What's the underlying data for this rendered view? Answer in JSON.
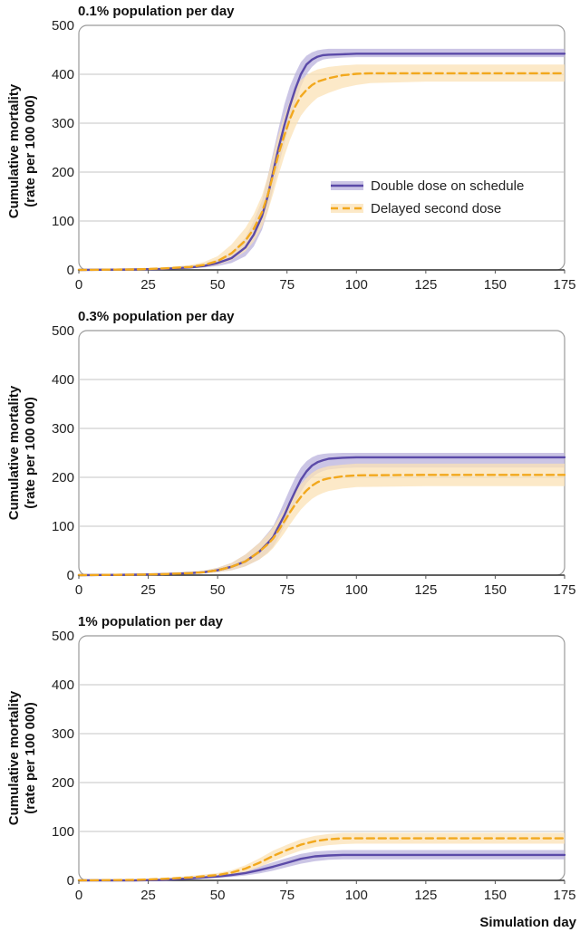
{
  "chart_data": [
    {
      "type": "line",
      "title": "0.1% population per day",
      "ylabel_line1": "Cumulative mortality",
      "ylabel_line2": "(rate per 100 000)",
      "xlim": [
        0,
        175
      ],
      "ylim": [
        0,
        500
      ],
      "xticks": [
        0,
        25,
        50,
        75,
        100,
        125,
        150,
        175
      ],
      "yticks": [
        0,
        100,
        200,
        300,
        400,
        500
      ],
      "legend": true,
      "series": [
        {
          "name": "Double dose on schedule",
          "style": "solid",
          "color": "#5b4aa8",
          "band_color": "#b9b1dc",
          "x": [
            0,
            20,
            30,
            40,
            45,
            50,
            55,
            60,
            63,
            66,
            68,
            70,
            72,
            74,
            76,
            78,
            80,
            82,
            84,
            86,
            88,
            90,
            95,
            100,
            125,
            150,
            175
          ],
          "y": [
            0,
            1,
            2,
            5,
            8,
            14,
            24,
            46,
            72,
            110,
            150,
            200,
            250,
            295,
            335,
            370,
            400,
            420,
            430,
            436,
            439,
            440,
            441,
            442,
            442,
            442,
            442
          ],
          "lower": [
            0,
            0,
            1,
            3,
            5,
            8,
            14,
            28,
            48,
            82,
            120,
            165,
            212,
            258,
            300,
            340,
            375,
            400,
            415,
            425,
            430,
            432,
            434,
            435,
            435,
            435,
            435
          ],
          "upper": [
            0,
            2,
            4,
            8,
            12,
            22,
            36,
            66,
            100,
            142,
            190,
            240,
            290,
            338,
            375,
            402,
            425,
            438,
            445,
            449,
            451,
            452,
            452,
            452,
            452,
            452,
            452
          ]
        },
        {
          "name": "Delayed second dose",
          "style": "dashed",
          "color": "#f2a81d",
          "band_color": "#fbe1b6",
          "x": [
            0,
            20,
            30,
            40,
            45,
            50,
            55,
            60,
            63,
            66,
            68,
            70,
            72,
            74,
            76,
            78,
            80,
            82,
            84,
            86,
            90,
            95,
            100,
            105,
            125,
            150,
            175
          ],
          "y": [
            0,
            1,
            3,
            6,
            10,
            18,
            34,
            60,
            84,
            118,
            152,
            195,
            238,
            275,
            308,
            335,
            355,
            368,
            378,
            385,
            392,
            398,
            401,
            402,
            402,
            402,
            402
          ],
          "lower": [
            0,
            0,
            1,
            3,
            6,
            10,
            20,
            38,
            58,
            88,
            118,
            155,
            195,
            232,
            265,
            292,
            315,
            330,
            342,
            352,
            362,
            372,
            378,
            382,
            385,
            385,
            385
          ],
          "upper": [
            0,
            2,
            5,
            10,
            16,
            28,
            52,
            86,
            114,
            152,
            190,
            235,
            278,
            315,
            345,
            370,
            388,
            398,
            405,
            410,
            415,
            418,
            420,
            420,
            420,
            420,
            420
          ]
        }
      ],
      "legend_entries": [
        "Double dose on schedule",
        "Delayed second dose"
      ]
    },
    {
      "type": "line",
      "title": "0.3% population per day",
      "ylabel_line1": "Cumulative mortality",
      "ylabel_line2": "(rate per 100 000)",
      "xlim": [
        0,
        175
      ],
      "ylim": [
        0,
        500
      ],
      "xticks": [
        0,
        25,
        50,
        75,
        100,
        125,
        150,
        175
      ],
      "yticks": [
        0,
        100,
        200,
        300,
        400,
        500
      ],
      "legend": false,
      "series": [
        {
          "name": "Double dose on schedule",
          "style": "solid",
          "color": "#5b4aa8",
          "band_color": "#b9b1dc",
          "x": [
            0,
            20,
            30,
            40,
            45,
            50,
            55,
            60,
            65,
            68,
            70,
            72,
            74,
            76,
            78,
            80,
            82,
            84,
            86,
            88,
            90,
            95,
            100,
            125,
            150,
            175
          ],
          "y": [
            0,
            1,
            2,
            4,
            6,
            10,
            17,
            28,
            48,
            65,
            78,
            100,
            122,
            148,
            172,
            195,
            212,
            224,
            231,
            235,
            238,
            240,
            241,
            241,
            241,
            241
          ],
          "lower": [
            0,
            0,
            1,
            2,
            4,
            6,
            10,
            18,
            32,
            46,
            58,
            78,
            100,
            124,
            148,
            170,
            188,
            200,
            208,
            213,
            216,
            219,
            220,
            220,
            220,
            220
          ],
          "upper": [
            0,
            2,
            4,
            7,
            9,
            15,
            25,
            42,
            66,
            86,
            100,
            124,
            150,
            176,
            200,
            220,
            233,
            241,
            246,
            248,
            249,
            250,
            250,
            250,
            250,
            250
          ]
        },
        {
          "name": "Delayed second dose",
          "style": "dashed",
          "color": "#f2a81d",
          "band_color": "#fbe1b6",
          "x": [
            0,
            20,
            30,
            40,
            45,
            50,
            55,
            60,
            65,
            68,
            70,
            72,
            74,
            76,
            78,
            80,
            82,
            84,
            86,
            88,
            90,
            95,
            100,
            125,
            150,
            175
          ],
          "y": [
            0,
            1,
            2,
            4,
            6,
            10,
            17,
            28,
            48,
            63,
            75,
            92,
            110,
            128,
            145,
            160,
            173,
            183,
            190,
            195,
            198,
            202,
            204,
            205,
            205,
            205
          ],
          "lower": [
            0,
            0,
            1,
            2,
            4,
            6,
            10,
            18,
            32,
            44,
            55,
            70,
            86,
            103,
            119,
            134,
            146,
            156,
            163,
            168,
            172,
            177,
            180,
            182,
            182,
            182
          ],
          "upper": [
            0,
            2,
            4,
            7,
            9,
            15,
            25,
            42,
            66,
            84,
            98,
            116,
            134,
            152,
            170,
            186,
            199,
            209,
            216,
            220,
            223,
            226,
            228,
            228,
            228,
            228
          ]
        }
      ]
    },
    {
      "type": "line",
      "title": "1% population per day",
      "ylabel_line1": "Cumulative mortality",
      "ylabel_line2": "(rate per 100 000)",
      "xlabel": "Simulation day",
      "xlim": [
        0,
        175
      ],
      "ylim": [
        0,
        500
      ],
      "xticks": [
        0,
        25,
        50,
        75,
        100,
        125,
        150,
        175
      ],
      "yticks": [
        0,
        100,
        200,
        300,
        400,
        500
      ],
      "legend": false,
      "series": [
        {
          "name": "Double dose on schedule",
          "style": "solid",
          "color": "#5b4aa8",
          "band_color": "#b9b1dc",
          "x": [
            0,
            20,
            30,
            40,
            50,
            55,
            60,
            65,
            70,
            75,
            80,
            85,
            90,
            95,
            100,
            125,
            150,
            175
          ],
          "y": [
            0,
            0,
            1,
            4,
            8,
            11,
            15,
            21,
            28,
            36,
            44,
            49,
            51,
            52,
            52,
            52,
            52,
            52
          ],
          "lower": [
            0,
            0,
            0,
            2,
            5,
            7,
            10,
            14,
            20,
            27,
            34,
            39,
            42,
            43,
            43,
            43,
            43,
            43
          ],
          "upper": [
            0,
            1,
            2,
            6,
            11,
            15,
            20,
            28,
            37,
            46,
            54,
            59,
            61,
            62,
            62,
            62,
            62,
            62
          ]
        },
        {
          "name": "Delayed second dose",
          "style": "dashed",
          "color": "#f2a81d",
          "band_color": "#fbe1b6",
          "x": [
            0,
            20,
            30,
            40,
            50,
            55,
            60,
            65,
            70,
            75,
            80,
            85,
            90,
            95,
            100,
            125,
            150,
            175
          ],
          "y": [
            0,
            1,
            3,
            6,
            11,
            16,
            24,
            36,
            50,
            62,
            73,
            80,
            84,
            86,
            86,
            86,
            86,
            86
          ],
          "lower": [
            0,
            0,
            1,
            3,
            7,
            11,
            17,
            27,
            39,
            51,
            61,
            68,
            72,
            74,
            75,
            75,
            75,
            75
          ],
          "upper": [
            0,
            2,
            5,
            9,
            15,
            21,
            31,
            45,
            61,
            73,
            84,
            91,
            95,
            97,
            97,
            97,
            97,
            97
          ]
        }
      ]
    }
  ]
}
